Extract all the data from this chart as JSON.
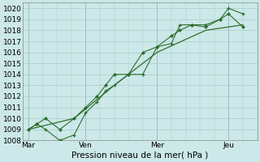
{
  "bg_color": "#cce8e8",
  "grid_color": "#aacccc",
  "line_color": "#2d6e2d",
  "marker_color": "#2d6e2d",
  "xlabel": "Pression niveau de la mer( hPa )",
  "ylim": [
    1008,
    1020.5
  ],
  "yticks": [
    1008,
    1009,
    1010,
    1011,
    1012,
    1013,
    1014,
    1015,
    1016,
    1017,
    1018,
    1019,
    1020
  ],
  "xtick_labels": [
    "Mar",
    "Ven",
    "Mer",
    "Jeu"
  ],
  "xtick_positions": [
    0,
    2,
    4.5,
    7
  ],
  "xlim": [
    -0.2,
    8.0
  ],
  "series1_x": [
    0,
    0.3,
    0.6,
    1.1,
    1.6,
    2.0,
    2.4,
    2.7,
    3.0,
    3.5,
    4.0,
    4.5,
    5.0,
    5.3,
    5.7,
    6.2,
    6.7,
    7.0,
    7.5
  ],
  "series1_y": [
    1009,
    1009.5,
    1009,
    1008,
    1008.5,
    1010.5,
    1011.5,
    1012.5,
    1013,
    1014,
    1014,
    1016.5,
    1016.8,
    1018.5,
    1018.5,
    1018.5,
    1019,
    1020,
    1019.5
  ],
  "series2_x": [
    0,
    0.3,
    0.6,
    1.1,
    1.6,
    2.0,
    2.4,
    2.7,
    3.0,
    3.5,
    4.0,
    4.5,
    5.0,
    5.3,
    5.7,
    6.2,
    6.7,
    7.0,
    7.5
  ],
  "series2_y": [
    1009,
    1009.5,
    1010,
    1009,
    1010,
    1011,
    1012,
    1013,
    1014,
    1014,
    1016.0,
    1016.5,
    1017.5,
    1018.0,
    1018.5,
    1018.3,
    1019.0,
    1019.5,
    1018.3
  ],
  "series3_x": [
    0,
    1.6,
    3.0,
    4.5,
    6.2,
    7.5
  ],
  "series3_y": [
    1009,
    1010,
    1013,
    1016,
    1018,
    1018.5
  ],
  "axis_fontsize": 7.5,
  "tick_fontsize": 6.5
}
